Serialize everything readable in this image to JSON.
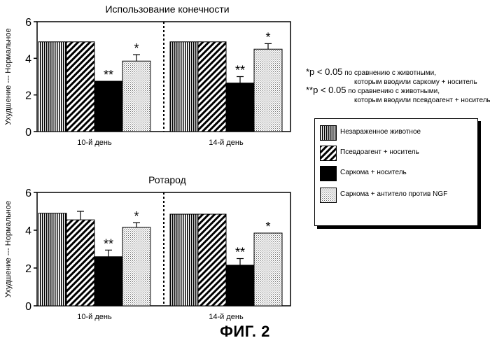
{
  "figure_caption": "ФИГ. 2",
  "legend": [
    {
      "label": "Незараженное животное",
      "pattern": "vertical"
    },
    {
      "label": "Псевдоагент + носитель",
      "pattern": "diagonal"
    },
    {
      "label": "Саркома + носитель",
      "pattern": "solid"
    },
    {
      "label": "Саркома + антитело против NGF",
      "pattern": "dots"
    }
  ],
  "notes": [
    {
      "mark": "*p < 0.05",
      "line1": "по сравнению с животными,",
      "line2": "которым вводили саркому + носитель"
    },
    {
      "mark": "**p < 0.05",
      "line1": "по сравнению с животными,",
      "line2": "которым вводили псевдоагент + носитель"
    }
  ],
  "colors": {
    "ink": "#000000",
    "background": "#ffffff"
  },
  "chart_data": [
    {
      "type": "bar",
      "title": "Использование конечности",
      "ylabel": "Ухудшение --- Нормальное",
      "xlabel": "",
      "ylim": [
        0,
        6
      ],
      "yticks": [
        0,
        2,
        4,
        6
      ],
      "categories": [
        "10-й день",
        "14-й день"
      ],
      "series": [
        {
          "name": "Незараженное животное",
          "values": [
            4.9,
            4.9
          ],
          "errors": [
            0,
            0
          ],
          "stars": [
            "",
            ""
          ]
        },
        {
          "name": "Псевдоагент + носитель",
          "values": [
            4.9,
            4.9
          ],
          "errors": [
            0,
            0
          ],
          "stars": [
            "",
            ""
          ]
        },
        {
          "name": "Саркома + носитель",
          "values": [
            2.75,
            2.65
          ],
          "errors": [
            0,
            0.35
          ],
          "stars": [
            "**",
            "**"
          ]
        },
        {
          "name": "Саркома + антитело против NGF",
          "values": [
            3.85,
            4.5
          ],
          "errors": [
            0.35,
            0.3
          ],
          "stars": [
            "*",
            "*"
          ]
        }
      ]
    },
    {
      "type": "bar",
      "title": "Ротарод",
      "ylabel": "Ухудшение --- Нормальное",
      "xlabel": "",
      "ylim": [
        0,
        6
      ],
      "yticks": [
        0,
        2,
        4,
        6
      ],
      "categories": [
        "10-й день",
        "14-й день"
      ],
      "series": [
        {
          "name": "Незараженное животное",
          "values": [
            4.9,
            4.85
          ],
          "errors": [
            0,
            0
          ],
          "stars": [
            "",
            ""
          ]
        },
        {
          "name": "Псевдоагент + носитель",
          "values": [
            4.55,
            4.85
          ],
          "errors": [
            0.45,
            0
          ],
          "stars": [
            "",
            ""
          ]
        },
        {
          "name": "Саркома + носитель",
          "values": [
            2.6,
            2.15
          ],
          "errors": [
            0.35,
            0.35
          ],
          "stars": [
            "**",
            "**"
          ]
        },
        {
          "name": "Саркома + антитело против NGF",
          "values": [
            4.15,
            3.85
          ],
          "errors": [
            0.25,
            0
          ],
          "stars": [
            "*",
            "*"
          ]
        }
      ]
    }
  ]
}
